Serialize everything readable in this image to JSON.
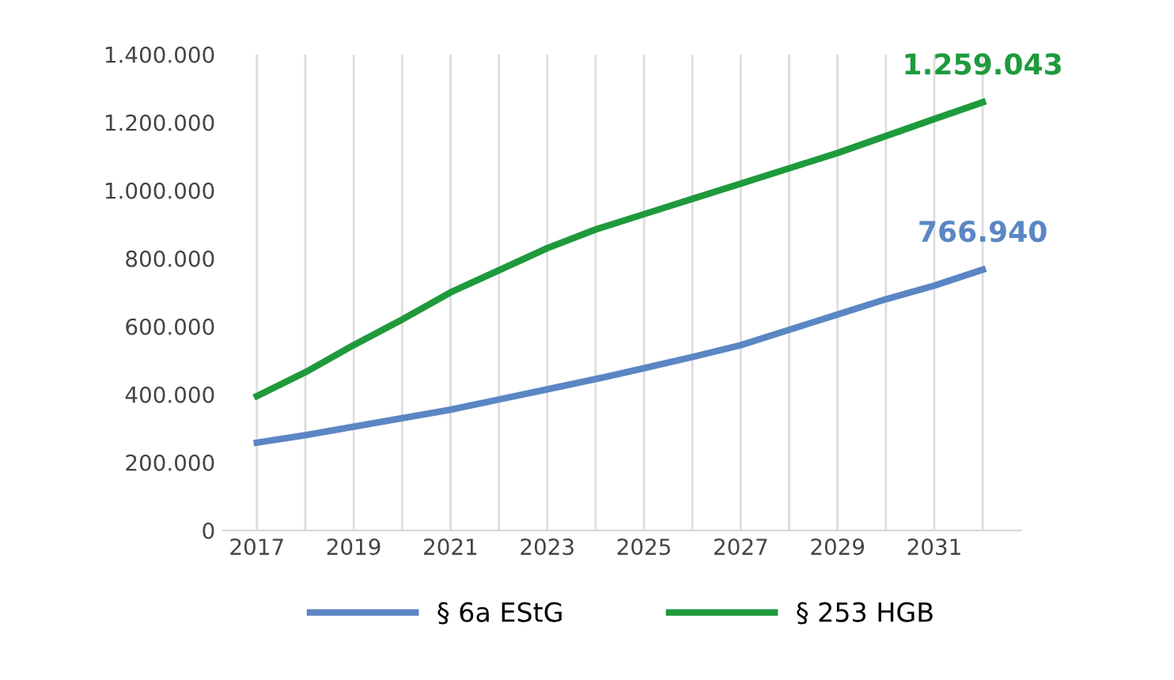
{
  "chart_data": {
    "type": "line",
    "x": [
      2017,
      2018,
      2019,
      2020,
      2021,
      2022,
      2023,
      2024,
      2025,
      2026,
      2027,
      2028,
      2029,
      2030,
      2031,
      2032
    ],
    "series": [
      {
        "name": "§ 6a EStG",
        "color": "#5b86c4",
        "values": [
          258000,
          280000,
          305000,
          330000,
          355000,
          385000,
          415000,
          445000,
          477000,
          510000,
          545000,
          590000,
          635000,
          680000,
          720000,
          766940
        ]
      },
      {
        "name": "§ 253 HGB",
        "color": "#1e9a3c",
        "values": [
          395000,
          465000,
          545000,
          620000,
          700000,
          765000,
          830000,
          885000,
          930000,
          975000,
          1020000,
          1065000,
          1110000,
          1160000,
          1210000,
          1259043
        ]
      }
    ],
    "annotations": [
      {
        "text": "766.940",
        "x": 2032,
        "y": 766940
      },
      {
        "text": "1.259.043",
        "x": 2032,
        "y": 1259043
      }
    ],
    "xlim": [
      2016.3,
      2032.8
    ],
    "xticks": [
      2017,
      {
        "value": 2018,
        "label": null
      },
      2019,
      {
        "value": 2020,
        "label": null
      },
      2021,
      {
        "value": 2022,
        "label": null
      },
      2023,
      {
        "value": 2024,
        "label": null
      },
      2025,
      {
        "value": 2026,
        "label": null
      },
      2027,
      {
        "value": 2028,
        "label": null
      },
      2029,
      {
        "value": 2030,
        "label": null
      },
      2031,
      {
        "value": 2032,
        "label": null
      }
    ],
    "ylim": [
      0,
      1400000
    ],
    "yticks": [
      0,
      {
        "value": 200000,
        "label": "200.000"
      },
      {
        "value": 400000,
        "label": "400.000"
      },
      {
        "value": 600000,
        "label": "600.000"
      },
      {
        "value": 800000,
        "label": "800.000"
      },
      {
        "value": 1000000,
        "label": "1.000.000"
      },
      {
        "value": 1200000,
        "label": "1.200.000"
      },
      {
        "value": 1400000,
        "label": "1.400.000"
      }
    ],
    "grid": "x",
    "legend": "bottom",
    "marker": "none",
    "line_style": "solid"
  }
}
